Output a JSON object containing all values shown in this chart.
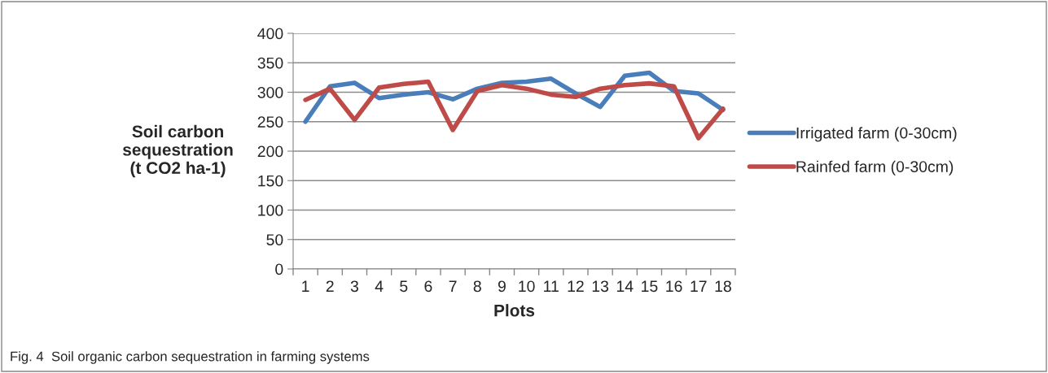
{
  "chart_data": {
    "type": "line",
    "xlabel": "Plots",
    "ylabel": "Soil carbon\nsequestration\n(t CO2 ha-1)",
    "categories": [
      "1",
      "2",
      "3",
      "4",
      "5",
      "6",
      "7",
      "8",
      "9",
      "10",
      "11",
      "12",
      "13",
      "14",
      "15",
      "16",
      "17",
      "18"
    ],
    "series": [
      {
        "name": "Irrigated farm (0-30cm)",
        "color": "#4a7ebb",
        "values": [
          250,
          310,
          316,
          290,
          296,
          300,
          288,
          306,
          316,
          318,
          323,
          298,
          275,
          328,
          333,
          302,
          298,
          270
        ]
      },
      {
        "name": "Rainfed farm (0-30cm)",
        "color": "#be4b48",
        "values": [
          287,
          306,
          253,
          308,
          314,
          318,
          236,
          302,
          312,
          306,
          296,
          292,
          306,
          312,
          315,
          310,
          222,
          272
        ]
      }
    ],
    "ylim": [
      0,
      400
    ],
    "yticks": [
      0,
      50,
      100,
      150,
      200,
      250,
      300,
      350,
      400
    ],
    "grid": "y",
    "legend": "right",
    "marker": "none",
    "line_style": "solid",
    "annotations": [
      "Fig. 4  Soil organic carbon sequestration in farming systems"
    ]
  }
}
